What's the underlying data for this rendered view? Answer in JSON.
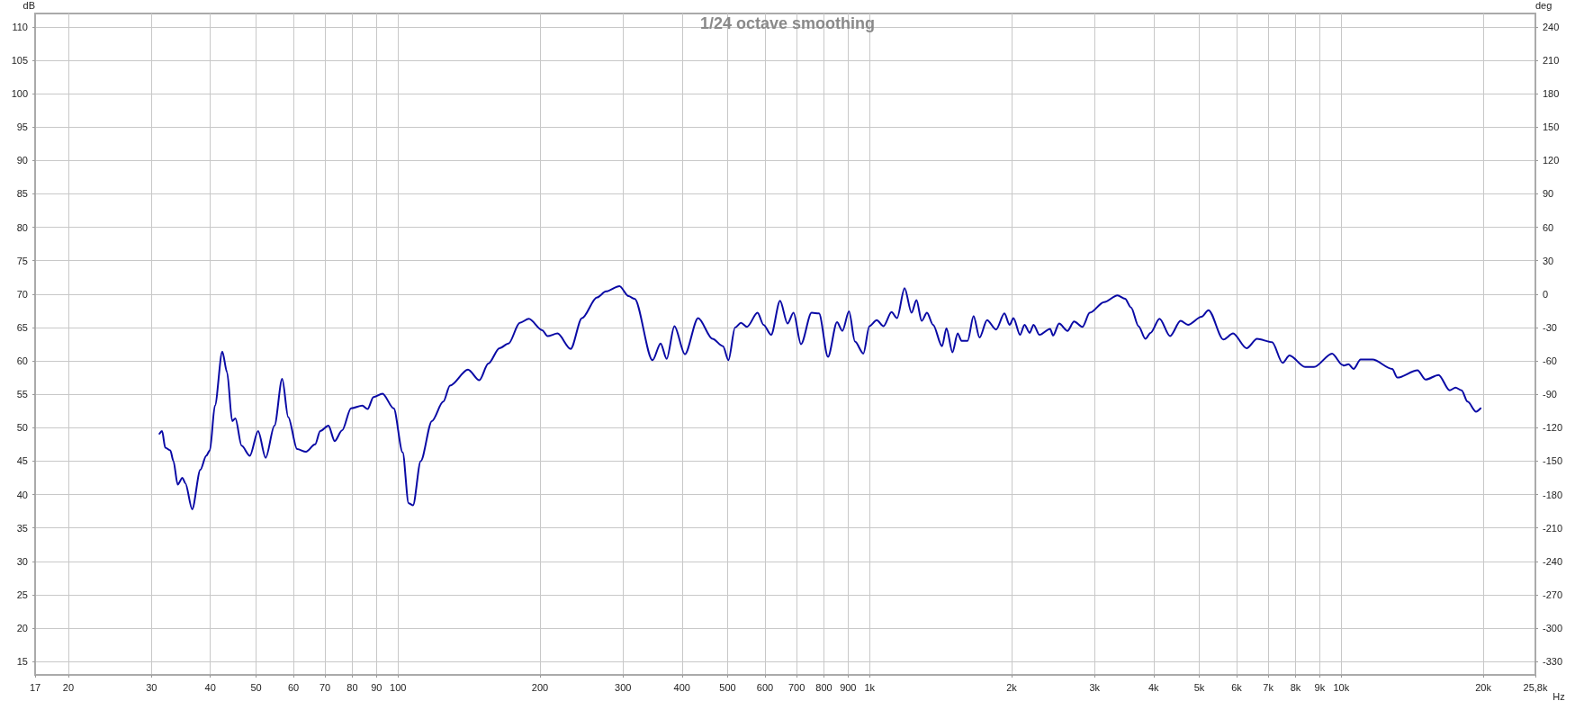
{
  "chart_data": {
    "type": "line",
    "title": "1/24 octave smoothing",
    "xlabel": "Hz",
    "ylabel": "dB",
    "y2label": "deg",
    "log": "x",
    "grid": true,
    "marker": "none",
    "line_style": "solid",
    "xlim": [
      17,
      25800
    ],
    "xticks": [
      17,
      20,
      30,
      40,
      50,
      60,
      70,
      80,
      90,
      100,
      200,
      300,
      400,
      500,
      600,
      700,
      800,
      900,
      {
        "value": 1000,
        "label": "1k"
      },
      {
        "value": 2000,
        "label": "2k"
      },
      {
        "value": 3000,
        "label": "3k"
      },
      {
        "value": 4000,
        "label": "4k"
      },
      {
        "value": 5000,
        "label": "5k"
      },
      {
        "value": 6000,
        "label": "6k"
      },
      {
        "value": 7000,
        "label": "7k"
      },
      {
        "value": 8000,
        "label": "8k"
      },
      {
        "value": 9000,
        "label": "9k"
      },
      {
        "value": 10000,
        "label": "10k"
      },
      {
        "value": 20000,
        "label": "20k"
      },
      {
        "value": 25800,
        "label": "25,8k"
      }
    ],
    "ylim": [
      13,
      112
    ],
    "yticks": [
      15,
      20,
      25,
      30,
      35,
      40,
      45,
      50,
      55,
      60,
      65,
      70,
      75,
      80,
      85,
      90,
      95,
      100,
      105,
      110
    ],
    "y2lim": [
      -342,
      252
    ],
    "y2ticks": [
      -330,
      -300,
      -270,
      -240,
      -210,
      -180,
      -150,
      -120,
      -90,
      -60,
      -30,
      0,
      30,
      60,
      90,
      120,
      150,
      180,
      210,
      240
    ],
    "series": [
      {
        "color": "#0a0aa5",
        "x": [
          31.2,
          31.6,
          32.1,
          32.9,
          33.4,
          34.1,
          34.9,
          35.4,
          36.6,
          38.1,
          39.2,
          39.9,
          40.9,
          42.4,
          43.4,
          44.5,
          45.2,
          46.6,
          48.5,
          50.5,
          52.4,
          54.7,
          56.8,
          58.5,
          61.1,
          63.8,
          66.7,
          68.4,
          71.2,
          73.4,
          76.1,
          79.5,
          84.0,
          86.2,
          88.7,
          92.7,
          97.9,
          102.3,
          105.3,
          107.6,
          111.7,
          118.0,
          124.7,
          128.9,
          140.7,
          148.7,
          155.4,
          164.1,
          171.5,
          181.2,
          189.4,
          202.2,
          207.5,
          217.8,
          232.3,
          245.5,
          264.2,
          276.0,
          294.8,
          308.1,
          317.3,
          346.5,
          360.4,
          371.2,
          385.5,
          405.7,
          432.8,
          464.3,
          488.7,
          501.8,
          518.4,
          533.6,
          549.5,
          578.5,
          595.7,
          618.1,
          645.7,
          669.6,
          689.6,
          715.2,
          753.1,
          780.9,
          816.0,
          852.7,
          875.4,
          904.1,
          930.9,
          969.8,
          998.8,
          1035,
          1070,
          1113,
          1143,
          1186,
          1227,
          1257,
          1289,
          1323,
          1363,
          1424,
          1455,
          1498,
          1537,
          1566,
          1613,
          1661,
          1710,
          1774,
          1854,
          1931,
          1980,
          2018,
          2084,
          2130,
          2184,
          2226,
          2292,
          2413,
          2449,
          2522,
          2627,
          2713,
          2827,
          2929,
          3141,
          3354,
          3479,
          3583,
          3716,
          3844,
          3940,
          4118,
          4335,
          4563,
          4733,
          5055,
          5229,
          5625,
          5896,
          6297,
          6629,
          7133,
          7508,
          7766,
          8378,
          8755,
          9560,
          10060,
          10130,
          10360,
          10620,
          10990,
          11650,
          12820,
          13150,
          14510,
          15100,
          16080,
          16980,
          17470,
          17990,
          18530,
          19310,
          19740
        ],
        "values": [
          49.1,
          49.5,
          47.0,
          46.6,
          45.0,
          41.5,
          42.5,
          41.7,
          37.8,
          43.7,
          45.8,
          46.6,
          53.3,
          61.4,
          58.3,
          51.0,
          51.4,
          47.3,
          45.8,
          49.5,
          45.5,
          50.3,
          57.3,
          51.6,
          46.8,
          46.4,
          47.5,
          49.5,
          50.3,
          48.0,
          49.6,
          52.9,
          53.3,
          52.8,
          54.6,
          55.1,
          52.9,
          46.3,
          38.7,
          38.4,
          45.0,
          51.0,
          53.9,
          56.3,
          58.7,
          57.1,
          59.6,
          61.9,
          62.6,
          65.7,
          66.3,
          64.6,
          63.7,
          64.1,
          61.8,
          66.4,
          69.5,
          70.4,
          71.2,
          69.7,
          69.3,
          60.1,
          62.6,
          60.3,
          65.2,
          61.0,
          66.4,
          63.3,
          62.2,
          60.1,
          65.0,
          65.7,
          65.1,
          67.2,
          65.4,
          63.9,
          69.0,
          65.6,
          67.2,
          62.5,
          67.2,
          67.1,
          60.6,
          65.8,
          64.5,
          67.4,
          62.9,
          61.1,
          65.2,
          66.1,
          65.2,
          67.3,
          66.4,
          70.9,
          67.2,
          69.1,
          66.0,
          67.2,
          65.4,
          62.2,
          64.9,
          61.3,
          64.1,
          63.0,
          63.0,
          66.7,
          63.5,
          66.1,
          64.7,
          67.1,
          65.4,
          66.4,
          63.9,
          65.4,
          64.2,
          65.4,
          63.9,
          64.8,
          63.8,
          65.6,
          64.5,
          65.9,
          65.1,
          67.2,
          68.8,
          69.8,
          69.3,
          68.0,
          65.2,
          63.3,
          64.2,
          66.3,
          63.7,
          66.0,
          65.4,
          66.6,
          67.6,
          63.2,
          64.1,
          61.9,
          63.3,
          62.8,
          59.7,
          60.8,
          59.1,
          59.1,
          61.1,
          59.4,
          59.3,
          59.5,
          58.8,
          60.2,
          60.2,
          58.8,
          57.5,
          58.6,
          57.2,
          57.9,
          55.6,
          56.0,
          55.6,
          53.9,
          52.4,
          52.9
        ]
      }
    ]
  }
}
